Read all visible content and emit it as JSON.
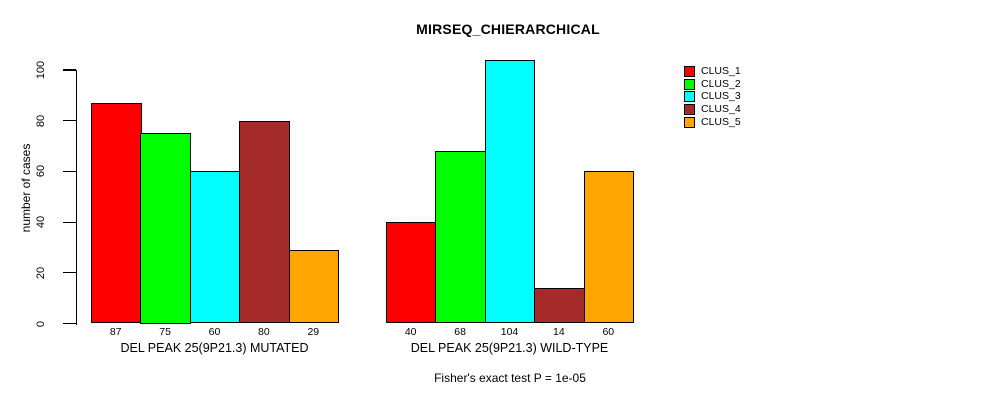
{
  "chart_data": {
    "type": "bar",
    "title": "MIRSEQ_CHIERARCHICAL",
    "ylabel": "number of cases",
    "annotation": "Fisher's exact test P = 1e-05",
    "ylim": [
      0,
      100
    ],
    "yticks": [
      0,
      20,
      40,
      60,
      80,
      100
    ],
    "grid": false,
    "legend_position": "top-right",
    "bar_border_color": "#000000",
    "categories": [
      "DEL PEAK 25(9P21.3) MUTATED",
      "DEL PEAK 25(9P21.3) WILD-TYPE"
    ],
    "series": [
      {
        "name": "CLUS_1",
        "color": "#FF0000",
        "values": [
          87,
          40
        ]
      },
      {
        "name": "CLUS_2",
        "color": "#00FF00",
        "values": [
          75,
          68
        ]
      },
      {
        "name": "CLUS_3",
        "color": "#00FFFF",
        "values": [
          60,
          104
        ]
      },
      {
        "name": "CLUS_4",
        "color": "#A52A2A",
        "values": [
          80,
          14
        ]
      },
      {
        "name": "CLUS_5",
        "color": "#FFA500",
        "values": [
          29,
          60
        ]
      }
    ]
  }
}
